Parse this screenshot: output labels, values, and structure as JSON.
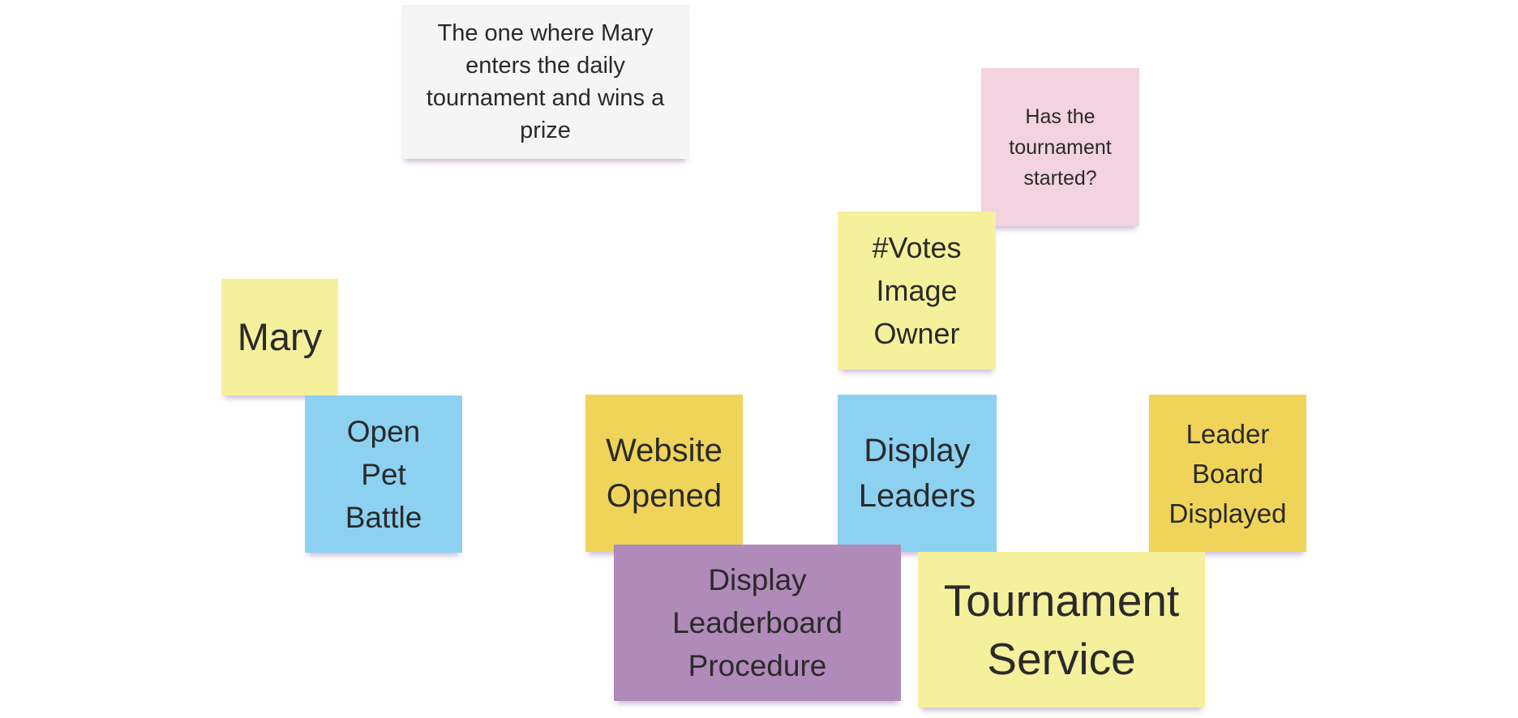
{
  "notes": {
    "story": {
      "text": "The one where Mary enters the daily tournament and wins a prize",
      "color": "#f5f5f6"
    },
    "question": {
      "text": "Has the tournament started?",
      "color": "#f2d3df"
    },
    "votes": {
      "text": "#Votes Image Owner",
      "color": "#f5f09c"
    },
    "mary": {
      "text": "Mary",
      "color": "#f5f09c"
    },
    "open_pet_battle": {
      "text": "Open Pet Battle",
      "color": "#8dd1f1"
    },
    "website_opened": {
      "text": "Website Opened",
      "color": "#f0d45a"
    },
    "display_leaders": {
      "text": "Display Leaders",
      "color": "#8dd1f1"
    },
    "leader_board_displayed": {
      "text": "Leader Board Displayed",
      "color": "#f0d45a"
    },
    "display_leaderboard_procedure": {
      "text": "Display Leaderboard Procedure",
      "color": "#b08ab9"
    },
    "tournament_service": {
      "text": "Tournament Service",
      "color": "#f5f09c"
    }
  }
}
